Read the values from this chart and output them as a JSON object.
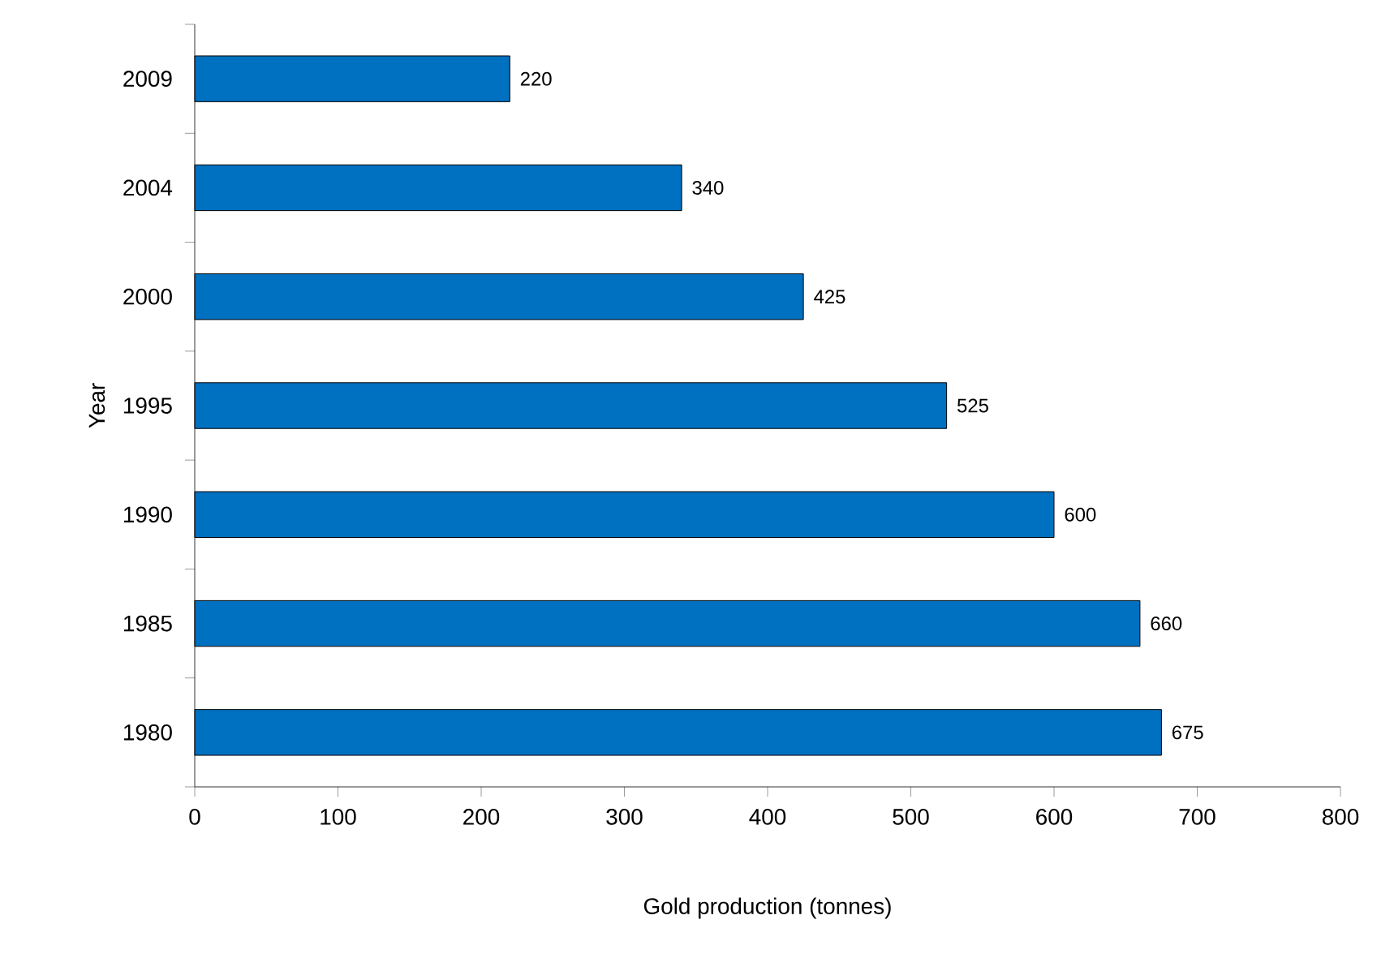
{
  "chart_data": {
    "type": "bar",
    "orientation": "horizontal",
    "xlabel": "Gold production (tonnes)",
    "ylabel": "Year",
    "categories": [
      "2009",
      "2004",
      "2000",
      "1995",
      "1990",
      "1985",
      "1980"
    ],
    "values": [
      220,
      340,
      425,
      525,
      600,
      660,
      675
    ],
    "color": "#0070c0",
    "xlim": [
      0,
      800
    ],
    "xticks": [
      0,
      100,
      200,
      300,
      400,
      500,
      600,
      700,
      800
    ],
    "data_labels": true
  }
}
